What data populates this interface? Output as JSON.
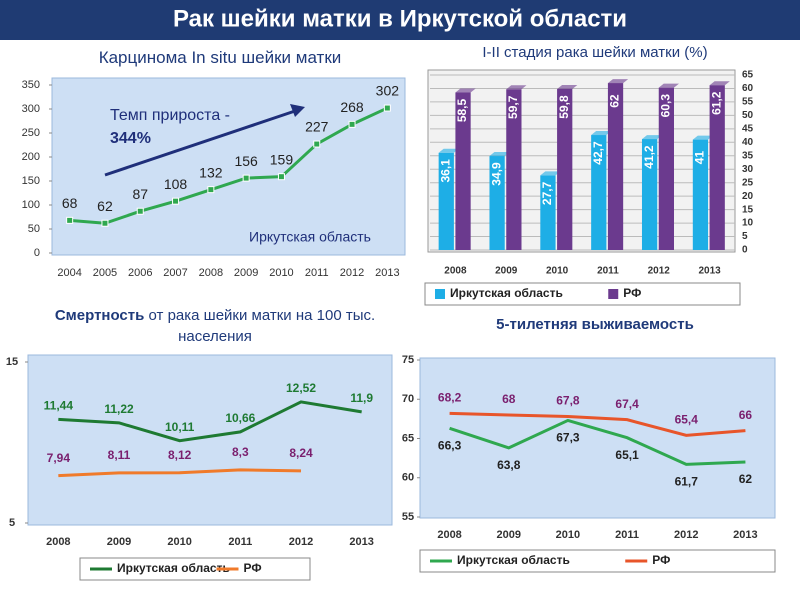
{
  "title": "Рак шейки матки в Иркутской области",
  "chart_data": [
    {
      "type": "line",
      "title": "Карцинома In situ шейки матки",
      "categories": [
        "2004",
        "2005",
        "2006",
        "2007",
        "2008",
        "2009",
        "2010",
        "2011",
        "2012",
        "2013"
      ],
      "series": [
        {
          "name": "Иркутская область",
          "color": "#2fa84f",
          "values": [
            68,
            62,
            87,
            108,
            132,
            156,
            159,
            227,
            268,
            302
          ]
        }
      ],
      "ylim": [
        0,
        350
      ],
      "yticks": [
        0,
        50,
        100,
        150,
        200,
        250,
        300,
        350
      ],
      "annotations": [
        "Темп прироста -",
        "344%"
      ]
    },
    {
      "type": "bar",
      "title": "I-II стадия рака шейки матки (%)",
      "categories": [
        "2008",
        "2009",
        "2010",
        "2011",
        "2012",
        "2013"
      ],
      "series": [
        {
          "name": "Иркутская область",
          "color": "#1eaee6",
          "values": [
            36.1,
            34.9,
            27.7,
            42.7,
            41.2,
            41
          ],
          "value_labels": [
            "36,1",
            "34,9",
            "27,7",
            "42,7",
            "41,2",
            "41"
          ]
        },
        {
          "name": "РФ",
          "color": "#6b3a8e",
          "values": [
            58.5,
            59.7,
            59.8,
            62,
            60.3,
            61.2
          ],
          "value_labels": [
            "58,5",
            "59,7",
            "59,8",
            "62",
            "60,3",
            "61,2"
          ]
        }
      ],
      "ylim": [
        0,
        65
      ],
      "yticks": [
        0,
        5,
        10,
        15,
        20,
        25,
        30,
        35,
        40,
        45,
        50,
        55,
        60,
        65
      ],
      "legend": "bottom"
    },
    {
      "type": "line",
      "title": [
        "Смертность",
        "от рака шейки матки на 100 тыс. населения"
      ],
      "categories": [
        "2008",
        "2009",
        "2010",
        "2011",
        "2012",
        "2013"
      ],
      "series": [
        {
          "name": "Иркутская область",
          "color": "#1e7a32",
          "values": [
            11.44,
            11.22,
            10.11,
            10.66,
            12.52,
            11.9
          ],
          "value_labels": [
            "11,44",
            "11,22",
            "10,11",
            "10,66",
            "12,52",
            "11,9"
          ]
        },
        {
          "name": "РФ",
          "color": "#f07a2a",
          "values": [
            7.94,
            8.11,
            8.12,
            8.3,
            8.24,
            null
          ],
          "value_labels": [
            "7,94",
            "8,11",
            "8,12",
            "8,3",
            "8,24",
            null
          ]
        }
      ],
      "ylim": [
        5,
        15
      ],
      "yticks": [
        5,
        15
      ],
      "legend": "bottom"
    },
    {
      "type": "line",
      "title": "5-тилетняя выживаемость",
      "categories": [
        "2008",
        "2009",
        "2010",
        "2011",
        "2012",
        "2013"
      ],
      "series": [
        {
          "name": "Иркутская область",
          "color": "#2fa84f",
          "values": [
            66.3,
            63.8,
            67.3,
            65.1,
            61.7,
            62
          ],
          "value_labels": [
            "66,3",
            "63,8",
            "67,3",
            "65,1",
            "61,7",
            "62"
          ]
        },
        {
          "name": "РФ",
          "color": "#e8552a",
          "values": [
            68.2,
            68,
            67.8,
            67.4,
            65.4,
            66
          ],
          "value_labels": [
            "68,2",
            "68",
            "67,8",
            "67,4",
            "65,4",
            "66"
          ]
        }
      ],
      "ylim": [
        55,
        75
      ],
      "yticks": [
        55,
        60,
        65,
        70,
        75
      ],
      "legend": "bottom"
    }
  ]
}
